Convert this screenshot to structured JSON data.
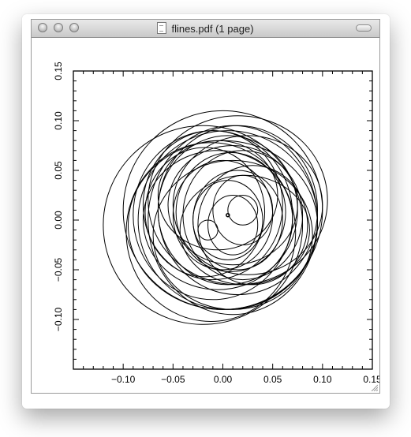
{
  "window": {
    "title": "flines.pdf (1 page)",
    "icons": [
      "close-icon",
      "minimize-icon",
      "zoom-icon",
      "toolbar-toggle-icon",
      "pdf-document-icon",
      "resize-grip-icon"
    ]
  },
  "chart_data": {
    "type": "line",
    "title": "",
    "xlabel": "",
    "ylabel": "",
    "xlim": [
      -0.15,
      0.15
    ],
    "ylim": [
      -0.15,
      0.15
    ],
    "x_ticks": [
      "−0.10",
      "−0.05",
      "0.00",
      "0.05",
      "0.10",
      "0.15"
    ],
    "y_ticks": [
      "0.15",
      "0.10",
      "0.05",
      "0.00",
      "−0.05",
      "−0.10"
    ],
    "grid": false,
    "legend": "none",
    "stroke_color": "#000000",
    "series": [
      {
        "values": [
          [
            0.005,
            0.005
          ],
          [
            0.004,
            0.004
          ]
        ],
        "kind": "center-point"
      },
      {
        "ellipses": [
          [
            0.005,
            0.0,
            0.09,
            0.09
          ],
          [
            0.0,
            0.01,
            0.1,
            0.1
          ],
          [
            0.01,
            0.0,
            0.085,
            0.095
          ],
          [
            -0.01,
            0.005,
            0.08,
            0.085
          ],
          [
            0.015,
            0.01,
            0.08,
            0.085
          ],
          [
            0.0,
            -0.005,
            0.095,
            0.085
          ],
          [
            0.005,
            0.01,
            0.07,
            0.075
          ],
          [
            -0.005,
            0.0,
            0.075,
            0.07
          ],
          [
            0.02,
            0.005,
            0.06,
            0.065
          ],
          [
            0.01,
            0.015,
            0.065,
            0.06
          ],
          [
            0.0,
            0.005,
            0.05,
            0.055
          ],
          [
            0.015,
            0.0,
            0.045,
            0.05
          ],
          [
            0.005,
            0.0,
            0.035,
            0.04
          ],
          [
            0.02,
            0.01,
            0.03,
            0.035
          ],
          [
            0.01,
            -0.005,
            0.025,
            0.03
          ],
          [
            -0.015,
            -0.01,
            0.01,
            0.01
          ],
          [
            0.02,
            0.01,
            0.015,
            0.015
          ],
          [
            -0.02,
            -0.005,
            0.1,
            0.1
          ],
          [
            0.025,
            0.015,
            0.075,
            0.07
          ],
          [
            -0.01,
            0.015,
            0.07,
            0.075
          ],
          [
            0.01,
            -0.015,
            0.08,
            0.075
          ],
          [
            0.03,
            -0.005,
            0.055,
            0.06
          ],
          [
            -0.005,
            0.025,
            0.06,
            0.055
          ],
          [
            0.015,
            0.02,
            0.09,
            0.085
          ],
          [
            -0.012,
            -0.012,
            0.085,
            0.09
          ],
          [
            0.008,
            0.008,
            0.055,
            0.06
          ],
          [
            0.022,
            -0.01,
            0.065,
            0.055
          ],
          [
            -0.018,
            0.008,
            0.06,
            0.065
          ]
        ],
        "kind": "field-lines"
      }
    ]
  }
}
